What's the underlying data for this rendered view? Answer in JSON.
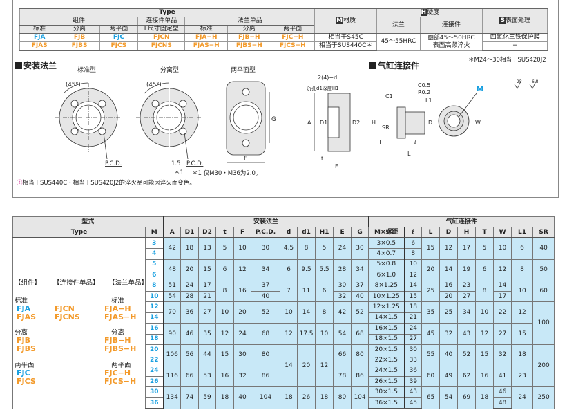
{
  "spec_table": {
    "type_label": "Type",
    "group_assembly": "组件",
    "group_connector": "连接件单品",
    "group_flange": "法兰单品",
    "sub": [
      "标准",
      "分离",
      "两平面",
      "L尺寸固定型",
      "标准",
      "分离",
      "两平面"
    ],
    "row1": [
      "FJA",
      "FJB",
      "FJC",
      "FJCN",
      "FJA−H",
      "FJB−H",
      "FJC−H"
    ],
    "row2": [
      "FJAS",
      "FJBS",
      "FJCS",
      "FJCNS",
      "FJAS−H",
      "FJBS−H",
      "FJCS−H"
    ],
    "material_label": "材质",
    "material_icon": "M",
    "material_values": [
      "相当于S45C",
      "相当于SUS440C＊"
    ],
    "hardness_label": "硬度",
    "hardness_icon": "H",
    "hardness_flange_label": "法兰",
    "hardness_connector_label": "连接件",
    "hardness_flange_value": "45～55HRC",
    "hardness_connector_value1": "▨部45～50HRC",
    "hardness_connector_value2": "表面高频淬火",
    "surface_label": "表面处理",
    "surface_icon": "S",
    "surface_values": [
      "四氧化三铁保护膜",
      "−"
    ]
  },
  "note_sus": "＊M24～30相当于SUS420J2",
  "section_flange": "安装法兰",
  "section_connector": "气缸连接件",
  "drawings": {
    "standard": "标准型",
    "split": "分离型",
    "twoflat": "两平面型",
    "angle": "(45°)",
    "pcd": "P.C.D.",
    "gap": "1.5",
    "star1": "＊1",
    "G": "G",
    "E": "E",
    "holes": "2(4)−d",
    "counterbore": "沉孔d1深度H1",
    "A": "A",
    "D1": "D1",
    "D2": "D2",
    "F": "F",
    "t": "t",
    "C05": "C0.5",
    "R02": "R0.2",
    "C1": "C1",
    "L1": "L1",
    "H": "H",
    "SR": "SR",
    "D": "D",
    "T": "T",
    "L": "L",
    "ell": "ℓ",
    "M": "M",
    "W": "W",
    "rough1": "25",
    "rough2": "6.3"
  },
  "note_star1": "＊1  仅M30・M36为2.0。",
  "footnote": "相当于SUS440C・相当于SUS420J2的淬火品可能因淬火而变色。",
  "footnote_icon": "warning-circle",
  "dims_table": {
    "group_type": "型式",
    "group_flange": "安装法兰",
    "group_connector": "气缸连接件",
    "type_label": "Type",
    "columns": [
      "M",
      "A",
      "D1",
      "D2",
      "t",
      "F",
      "P.C.D.",
      "d",
      "d1",
      "H1",
      "E",
      "G",
      "M×螺距",
      "ℓ",
      "L",
      "D",
      "H",
      "T",
      "W",
      "L1",
      "SR"
    ],
    "type_block": {
      "cat_assembly": "【组件】",
      "cat_connector": "【连接件单品】",
      "cat_flange": "【法兰单品】",
      "std": "标准",
      "split": "分离",
      "flat": "两平面",
      "asm_std": [
        "FJA",
        "FJAS"
      ],
      "con_std": [
        "FJCN",
        "FJCNS"
      ],
      "fl_std": [
        "FJA−H",
        "FJAS−H"
      ],
      "asm_split": [
        "FJB",
        "FJBS"
      ],
      "fl_split": [
        "FJB−H",
        "FJBS−H"
      ],
      "asm_flat": [
        "FJC",
        "FJCS"
      ],
      "fl_flat": [
        "FJC−H",
        "FJCS−H"
      ]
    },
    "rows": [
      [
        "3",
        "42",
        "18",
        "13",
        "5",
        "10",
        "30",
        "4.5",
        "8",
        "5",
        "24",
        "30",
        "3×0.5",
        "6",
        "15",
        "12",
        "17",
        "5",
        "10",
        "6",
        "40"
      ],
      [
        "4",
        null,
        null,
        null,
        null,
        null,
        null,
        null,
        null,
        null,
        null,
        null,
        "4×0.7",
        "8",
        null,
        null,
        null,
        null,
        null,
        null,
        null
      ],
      [
        "5",
        "48",
        "20",
        "15",
        "6",
        "12",
        "34",
        "6",
        "9.5",
        "5.5",
        "28",
        "34",
        "5×0.8",
        "10",
        "20",
        "14",
        "19",
        "6",
        "12",
        "8",
        "50"
      ],
      [
        "6",
        null,
        null,
        null,
        null,
        null,
        null,
        null,
        null,
        null,
        null,
        null,
        "6×1.0",
        "12",
        null,
        null,
        null,
        null,
        null,
        null,
        null
      ],
      [
        "8",
        "51",
        "24",
        "17",
        "8",
        "16",
        "37",
        "7",
        "11",
        "6",
        "30",
        "37",
        "8×1.25",
        "14",
        "25",
        "16",
        "23",
        "8",
        "14",
        "10",
        "60"
      ],
      [
        "10",
        "54",
        "28",
        "21",
        null,
        null,
        "40",
        null,
        null,
        null,
        "32",
        "40",
        "10×1.25",
        "15",
        null,
        "20",
        "27",
        null,
        "17",
        null,
        null
      ],
      [
        "12",
        "70",
        "36",
        "27",
        "10",
        "20",
        "52",
        "10",
        "14",
        "8",
        "42",
        "52",
        "12×1.25",
        "18",
        "35",
        "25",
        "34",
        "10",
        "22",
        "12",
        "100"
      ],
      [
        "14",
        null,
        null,
        null,
        null,
        null,
        null,
        null,
        null,
        null,
        null,
        null,
        "14×1.5",
        "21",
        null,
        null,
        null,
        null,
        null,
        null,
        null
      ],
      [
        "16",
        "90",
        "46",
        "35",
        "12",
        "24",
        "68",
        "12",
        "17.5",
        "10",
        "54",
        "68",
        "16×1.5",
        "24",
        "45",
        "32",
        "43",
        "12",
        "27",
        "15",
        null
      ],
      [
        "18",
        null,
        null,
        null,
        null,
        null,
        null,
        null,
        null,
        null,
        null,
        null,
        "18×1.5",
        "27",
        null,
        null,
        null,
        null,
        null,
        null,
        null
      ],
      [
        "20",
        "106",
        "56",
        "44",
        "15",
        "30",
        "80",
        "14",
        "20",
        "12",
        "66",
        "80",
        "20×1.5",
        "30",
        "55",
        "40",
        "52",
        "15",
        "32",
        "18",
        "200"
      ],
      [
        "22",
        null,
        null,
        null,
        null,
        null,
        null,
        null,
        null,
        null,
        null,
        null,
        "22×1.5",
        "33",
        null,
        null,
        null,
        null,
        null,
        null,
        null
      ],
      [
        "24",
        "116",
        "66",
        "53",
        "16",
        "32",
        "86",
        null,
        null,
        null,
        "78",
        "86",
        "24×1.5",
        "36",
        "60",
        "49",
        "62",
        "16",
        "41",
        "23",
        null
      ],
      [
        "26",
        null,
        null,
        null,
        null,
        null,
        null,
        null,
        null,
        null,
        null,
        null,
        "26×1.5",
        "39",
        null,
        null,
        null,
        null,
        null,
        null,
        null
      ],
      [
        "30",
        "134",
        "74",
        "59",
        "18",
        "40",
        "104",
        "18",
        "26",
        "18",
        "80",
        "104",
        "30×1.5",
        "43",
        "65",
        "54",
        "69",
        "18",
        "46",
        "24",
        "250"
      ],
      [
        "36",
        null,
        null,
        null,
        null,
        null,
        null,
        null,
        null,
        null,
        null,
        null,
        "36×1.5",
        "45",
        null,
        null,
        null,
        null,
        "48",
        null,
        null
      ]
    ]
  }
}
